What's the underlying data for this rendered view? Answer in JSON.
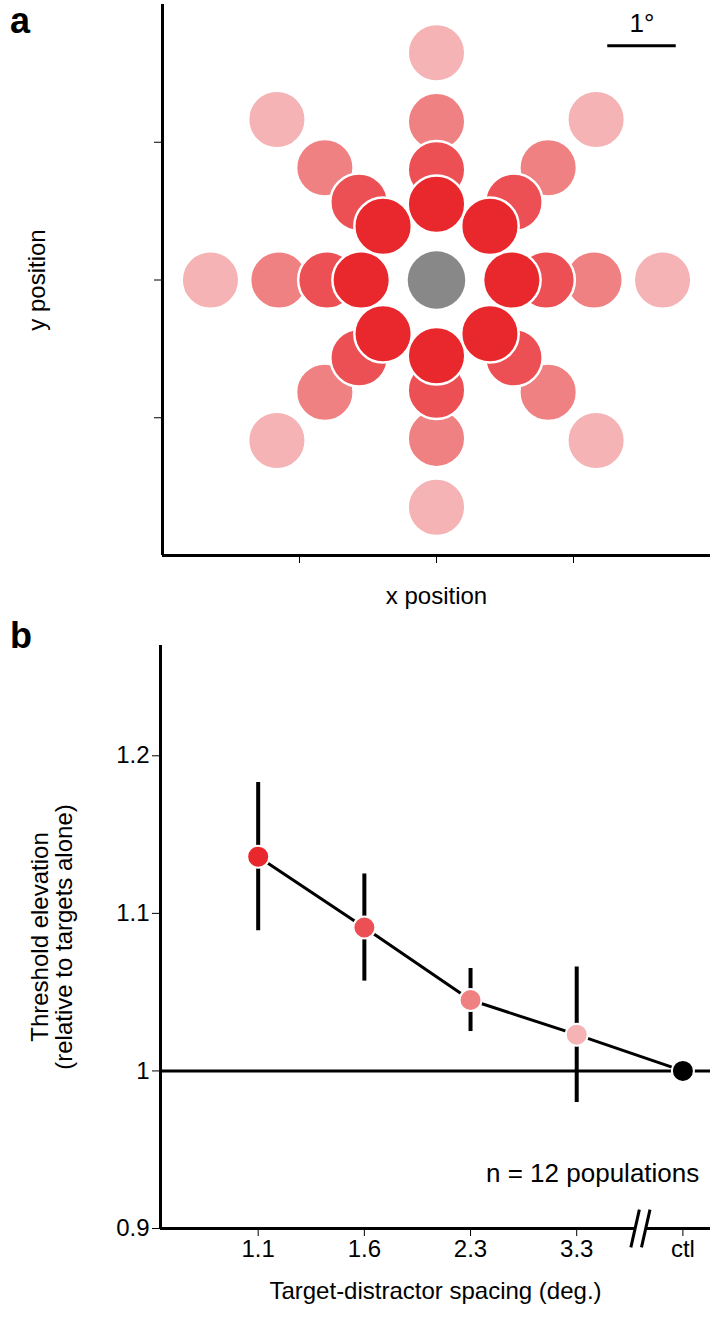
{
  "chart_data": [
    {
      "type": "scatter",
      "title": "a",
      "x_label": "x position",
      "y_label": "y position",
      "xlim": [
        -4,
        4
      ],
      "ylim": [
        -4,
        4
      ],
      "xticks": [
        -2,
        0,
        2
      ],
      "yticks": [
        -2,
        0,
        2
      ],
      "tick_labels": false,
      "scale_bar": {
        "length": 1,
        "label": "1°"
      },
      "series": [
        {
          "color": "#e8282c",
          "x": [
            1.1,
            0.78,
            0,
            -0.78,
            -1.1,
            -0.78,
            0,
            0.78
          ],
          "y": [
            0,
            0.78,
            1.1,
            0.78,
            0,
            -0.78,
            -1.1,
            -0.78
          ]
        },
        {
          "color": "#ec5055",
          "x": [
            1.6,
            1.13,
            0,
            -1.13,
            -1.6,
            -1.13,
            0,
            1.13
          ],
          "y": [
            0,
            1.13,
            1.6,
            1.13,
            0,
            -1.13,
            -1.6,
            -1.13
          ]
        },
        {
          "color": "#f08183",
          "x": [
            2.3,
            1.63,
            0,
            -1.63,
            -2.3,
            -1.63,
            0,
            1.63
          ],
          "y": [
            0,
            1.63,
            2.3,
            1.63,
            0,
            -1.63,
            -2.3,
            -1.63
          ]
        },
        {
          "color": "#f5b3b5",
          "x": [
            3.3,
            2.33,
            0,
            -2.33,
            -3.3,
            -2.33,
            0,
            2.33
          ],
          "y": [
            0,
            2.33,
            3.3,
            2.33,
            0,
            -2.33,
            -3.3,
            -2.33
          ]
        },
        {
          "marker": "grating",
          "x": [
            0
          ],
          "y": [
            0
          ]
        }
      ]
    },
    {
      "type": "line",
      "title": "b",
      "x_label": "Target-distractor spacing (deg.)",
      "y_label": "Threshold elevation\n(relative to targets alone)",
      "categories": [
        "1.1",
        "1.6",
        "2.3",
        "3.3",
        "ctl"
      ],
      "values": [
        1.136,
        1.091,
        1.045,
        1.023,
        1
      ],
      "error": [
        0.047,
        0.034,
        0.02,
        0.043,
        null
      ],
      "colors": [
        "#e8282c",
        "#ec5055",
        "#f08183",
        "#f5b3b5",
        "#000000"
      ],
      "ylim": [
        0.9,
        1.27
      ],
      "yticks": [
        0.9,
        1,
        1.1,
        1.2
      ],
      "reference_line": 1,
      "annotations": [
        {
          "text": "n = 12 populations"
        }
      ]
    }
  ]
}
